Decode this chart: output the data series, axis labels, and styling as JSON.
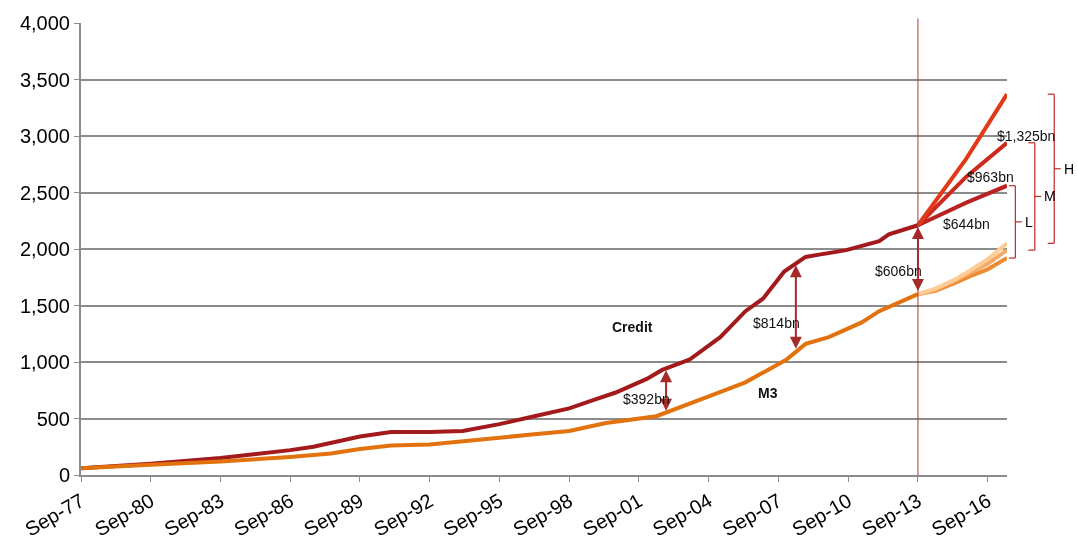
{
  "chart_data": {
    "type": "line",
    "xlim": [
      "1977-09",
      "2017-07"
    ],
    "xticks": [
      {
        "value": "1977-09",
        "label": "Sep-77"
      },
      {
        "value": "1980-09",
        "label": "Sep-80"
      },
      {
        "value": "1983-09",
        "label": "Sep-83"
      },
      {
        "value": "1986-09",
        "label": "Sep-86"
      },
      {
        "value": "1989-09",
        "label": "Sep-89"
      },
      {
        "value": "1992-09",
        "label": "Sep-92"
      },
      {
        "value": "1995-09",
        "label": "Sep-95"
      },
      {
        "value": "1998-09",
        "label": "Sep-98"
      },
      {
        "value": "2001-09",
        "label": "Sep-01"
      },
      {
        "value": "2004-09",
        "label": "Sep-04"
      },
      {
        "value": "2007-09",
        "label": "Sep-07"
      },
      {
        "value": "2010-09",
        "label": "Sep-10"
      },
      {
        "value": "2013-09",
        "label": "Sep-13"
      },
      {
        "value": "2016-09",
        "label": "Sep-16"
      }
    ],
    "ylim": [
      0,
      4000
    ],
    "yticks": [
      0,
      500,
      {
        "value": 1000,
        "label": "1,000"
      },
      {
        "value": 1500,
        "label": "1,500"
      },
      {
        "value": 2000,
        "label": "2,000"
      },
      {
        "value": 2500,
        "label": "2,500"
      },
      {
        "value": 3000,
        "label": "3,000"
      },
      {
        "value": 3500,
        "label": "3,500"
      },
      {
        "value": 4000,
        "label": "4,000"
      }
    ],
    "grid": "y",
    "marker": "none",
    "line_style": "solid",
    "series": [
      {
        "color": "#a31a1c",
        "x": [
          "1977-09",
          "1980-09",
          "1983-09",
          "1986-09",
          "1987-09",
          "1989-09",
          "1991-01",
          "1992-09",
          "1994-02",
          "1995-09",
          "1997-03",
          "1998-09",
          "1999-09",
          "2000-09",
          "2002-01",
          "2002-09",
          "2003-11",
          "2005-03",
          "2006-04",
          "2007-01",
          "2007-12",
          "2008-11",
          "2009-06",
          "2010-08",
          "2012-01",
          "2012-06",
          "2013-09"
        ],
        "values": [
          60,
          100,
          150,
          220,
          250,
          340,
          380,
          380,
          390,
          450,
          520,
          590,
          660,
          730,
          850,
          930,
          1020,
          1220,
          1450,
          1560,
          1800,
          1930,
          1950,
          1990,
          2070,
          2130,
          2210
        ]
      },
      {
        "color": "#e2720e",
        "x": [
          "1977-09",
          "1980-09",
          "1983-09",
          "1986-09",
          "1988-06",
          "1989-09",
          "1991-01",
          "1992-09",
          "1995-09",
          "1997-03",
          "1998-09",
          "2000-04",
          "2002-06",
          "2004-08",
          "2006-04",
          "2008-01",
          "2008-11",
          "2009-11",
          "2011-04",
          "2012-01",
          "2013-09"
        ],
        "values": [
          60,
          90,
          120,
          160,
          190,
          230,
          260,
          270,
          330,
          360,
          390,
          460,
          520,
          690,
          820,
          1020,
          1160,
          1220,
          1350,
          1450,
          1600
        ]
      },
      {
        "color": "#b82222",
        "x": [
          "2013-09",
          "2015-10",
          "2017-07"
        ],
        "values": [
          2210,
          2410,
          2560
        ]
      },
      {
        "color": "#cc2a1c",
        "x": [
          "2013-09",
          "2015-10",
          "2017-07"
        ],
        "values": [
          2210,
          2640,
          2940
        ]
      },
      {
        "color": "#e03a18",
        "x": [
          "2013-09",
          "2015-10",
          "2017-07"
        ],
        "values": [
          2210,
          2800,
          3370
        ]
      },
      {
        "color": "#ee8c34",
        "x": [
          "2013-09",
          "2014-06",
          "2015-03",
          "2015-12",
          "2016-09",
          "2017-07"
        ],
        "values": [
          1600,
          1630,
          1690,
          1760,
          1820,
          1920
        ]
      },
      {
        "color": "#f6aa66",
        "x": [
          "2013-09",
          "2014-06",
          "2015-03",
          "2015-12",
          "2016-09",
          "2017-07"
        ],
        "values": [
          1600,
          1640,
          1710,
          1790,
          1870,
          1990
        ]
      },
      {
        "color": "#ffcc98",
        "x": [
          "2013-09",
          "2014-06",
          "2015-03",
          "2015-12",
          "2016-09",
          "2017-07"
        ],
        "values": [
          1600,
          1650,
          1720,
          1810,
          1910,
          2050
        ]
      }
    ],
    "ref_lines": [
      {
        "axis": "x",
        "value": "2013-09",
        "color": "#b23a3a"
      }
    ],
    "annotations": [
      {
        "text": "$392bn",
        "x": "2002-11",
        "y": 540
      },
      {
        "text": "$814bn",
        "x": "2008-06",
        "y": 1090
      },
      {
        "text": "$606bn",
        "x": "2013-09",
        "y": 1600
      },
      "Credit",
      "M3",
      "$1,325bn",
      "$963bn",
      "$644bn",
      "L",
      "M",
      "H"
    ]
  }
}
